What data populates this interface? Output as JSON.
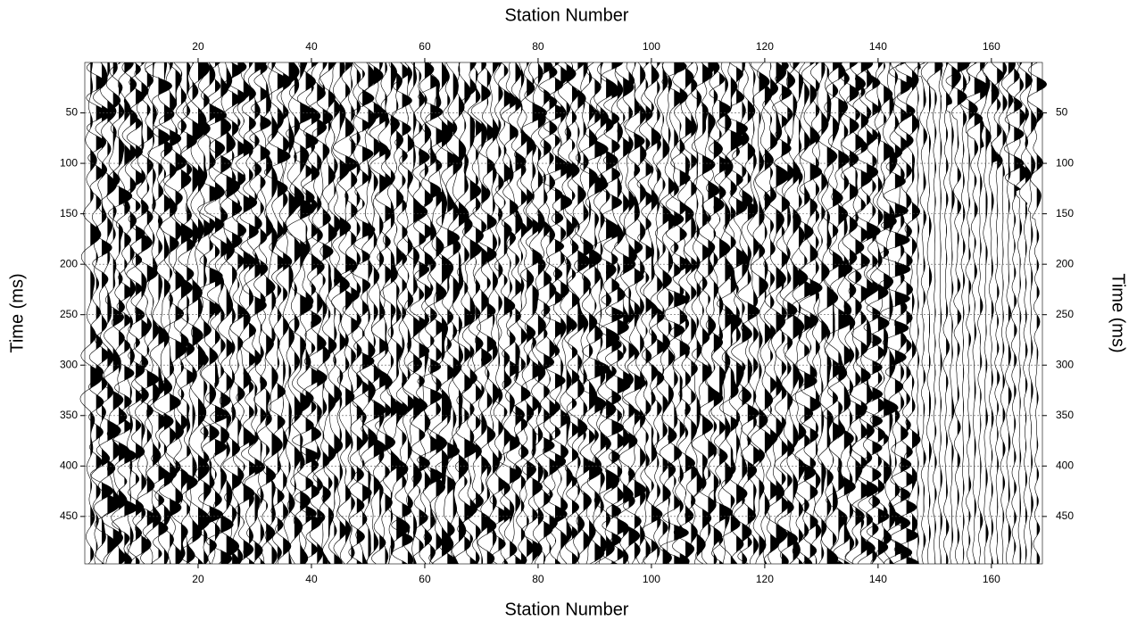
{
  "chart_data": {
    "type": "seismic-wiggle",
    "xlabel": "Station Number",
    "ylabel": "Time (ms)",
    "xlim": [
      0,
      169
    ],
    "xticks": [
      20,
      40,
      60,
      80,
      100,
      120,
      140,
      160
    ],
    "ylim": [
      0,
      497
    ],
    "yticks": [
      50,
      100,
      150,
      200,
      250,
      300,
      350,
      400,
      450
    ],
    "grid": true,
    "color": "#000000"
  }
}
